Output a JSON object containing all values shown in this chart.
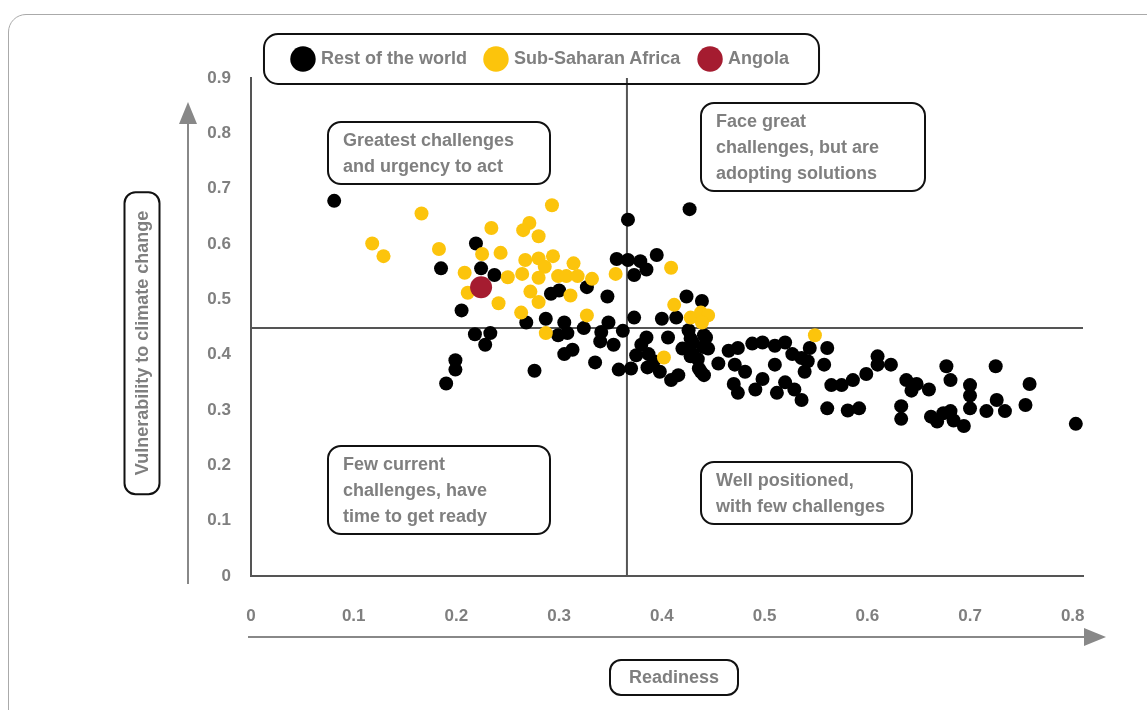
{
  "chart_data": {
    "type": "scatter",
    "xlabel": "Readiness",
    "ylabel": "Vulnerability to climate change",
    "xlim": [
      0,
      0.81
    ],
    "ylim": [
      0,
      0.9
    ],
    "xticks": [
      0,
      0.1,
      0.2,
      0.3,
      0.4,
      0.5,
      0.6,
      0.7,
      0.8
    ],
    "yticks": [
      0,
      0.1,
      0.2,
      0.3,
      0.4,
      0.5,
      0.6,
      0.7,
      0.8,
      0.9
    ],
    "grid": false,
    "legend": "top",
    "marker": "circle",
    "ref_lines": [
      {
        "axis": "x",
        "value": 0.366
      },
      {
        "axis": "y",
        "value": 0.448
      }
    ],
    "annotations": [
      "Greatest challenges\nand urgency to act",
      "Face great\nchallenges, but are\nadopting solutions",
      "Few current\nchallenges, have\ntime to get ready",
      "Well positioned,\nwith few challenges"
    ],
    "series": [
      {
        "name": "Rest of the world",
        "color": "#000000",
        "x": [
          0.081,
          0.219,
          0.185,
          0.224,
          0.237,
          0.205,
          0.292,
          0.3,
          0.327,
          0.356,
          0.367,
          0.379,
          0.385,
          0.373,
          0.395,
          0.347,
          0.367,
          0.427,
          0.424,
          0.439,
          0.268,
          0.287,
          0.305,
          0.218,
          0.233,
          0.228,
          0.299,
          0.308,
          0.324,
          0.341,
          0.348,
          0.362,
          0.373,
          0.4,
          0.414,
          0.34,
          0.353,
          0.385,
          0.406,
          0.38,
          0.426,
          0.43,
          0.441,
          0.44,
          0.42,
          0.305,
          0.313,
          0.375,
          0.387,
          0.392,
          0.386,
          0.398,
          0.37,
          0.358,
          0.335,
          0.276,
          0.199,
          0.199,
          0.19,
          0.428,
          0.435,
          0.438,
          0.416,
          0.409,
          0.428,
          0.443,
          0.445,
          0.43,
          0.436,
          0.441,
          0.455,
          0.465,
          0.474,
          0.488,
          0.498,
          0.471,
          0.481,
          0.474,
          0.47,
          0.491,
          0.498,
          0.51,
          0.52,
          0.527,
          0.51,
          0.512,
          0.52,
          0.529,
          0.536,
          0.539,
          0.542,
          0.544,
          0.536,
          0.561,
          0.558,
          0.565,
          0.561,
          0.575,
          0.581,
          0.592,
          0.586,
          0.599,
          0.61,
          0.61,
          0.623,
          0.638,
          0.643,
          0.648,
          0.66,
          0.633,
          0.633,
          0.662,
          0.668,
          0.674,
          0.681,
          0.684,
          0.694,
          0.677,
          0.681,
          0.7,
          0.7,
          0.7,
          0.716,
          0.726,
          0.725,
          0.734,
          0.758,
          0.754,
          0.803
        ],
        "values": [
          0.678,
          0.601,
          0.556,
          0.556,
          0.544,
          0.48,
          0.51,
          0.516,
          0.522,
          0.573,
          0.571,
          0.569,
          0.554,
          0.544,
          0.58,
          0.505,
          0.644,
          0.663,
          0.505,
          0.497,
          0.458,
          0.465,
          0.458,
          0.437,
          0.439,
          0.418,
          0.435,
          0.439,
          0.448,
          0.441,
          0.458,
          0.443,
          0.467,
          0.465,
          0.467,
          0.424,
          0.418,
          0.431,
          0.431,
          0.418,
          0.444,
          0.422,
          0.435,
          0.414,
          0.411,
          0.401,
          0.409,
          0.399,
          0.401,
          0.388,
          0.377,
          0.369,
          0.375,
          0.373,
          0.386,
          0.371,
          0.39,
          0.373,
          0.348,
          0.397,
          0.392,
          0.369,
          0.363,
          0.354,
          0.429,
          0.431,
          0.411,
          0.401,
          0.375,
          0.363,
          0.384,
          0.407,
          0.412,
          0.42,
          0.422,
          0.382,
          0.369,
          0.331,
          0.347,
          0.337,
          0.356,
          0.416,
          0.422,
          0.401,
          0.382,
          0.331,
          0.35,
          0.337,
          0.318,
          0.369,
          0.388,
          0.412,
          0.394,
          0.412,
          0.382,
          0.345,
          0.303,
          0.345,
          0.299,
          0.303,
          0.354,
          0.365,
          0.397,
          0.382,
          0.382,
          0.354,
          0.335,
          0.347,
          0.337,
          0.307,
          0.284,
          0.288,
          0.279,
          0.294,
          0.298,
          0.281,
          0.271,
          0.379,
          0.354,
          0.345,
          0.326,
          0.303,
          0.298,
          0.318,
          0.379,
          0.298,
          0.347,
          0.309,
          0.275
        ]
      },
      {
        "name": "Sub-Saharan Africa",
        "color": "#fcc40c",
        "x": [
          0.166,
          0.118,
          0.129,
          0.183,
          0.234,
          0.293,
          0.271,
          0.265,
          0.28,
          0.225,
          0.243,
          0.208,
          0.211,
          0.241,
          0.25,
          0.264,
          0.267,
          0.28,
          0.286,
          0.294,
          0.28,
          0.299,
          0.307,
          0.314,
          0.318,
          0.332,
          0.272,
          0.28,
          0.311,
          0.263,
          0.327,
          0.287,
          0.355,
          0.409,
          0.412,
          0.428,
          0.438,
          0.445,
          0.439,
          0.402,
          0.549
        ],
        "values": [
          0.655,
          0.601,
          0.578,
          0.591,
          0.629,
          0.67,
          0.638,
          0.625,
          0.614,
          0.582,
          0.584,
          0.548,
          0.512,
          0.493,
          0.54,
          0.546,
          0.571,
          0.574,
          0.559,
          0.578,
          0.539,
          0.542,
          0.542,
          0.565,
          0.542,
          0.537,
          0.514,
          0.495,
          0.507,
          0.476,
          0.471,
          0.439,
          0.546,
          0.557,
          0.49,
          0.467,
          0.476,
          0.471,
          0.458,
          0.395,
          0.435
        ]
      },
      {
        "name": "Angola",
        "color": "#a51c30",
        "x": [
          0.224
        ],
        "values": [
          0.522
        ]
      }
    ]
  }
}
